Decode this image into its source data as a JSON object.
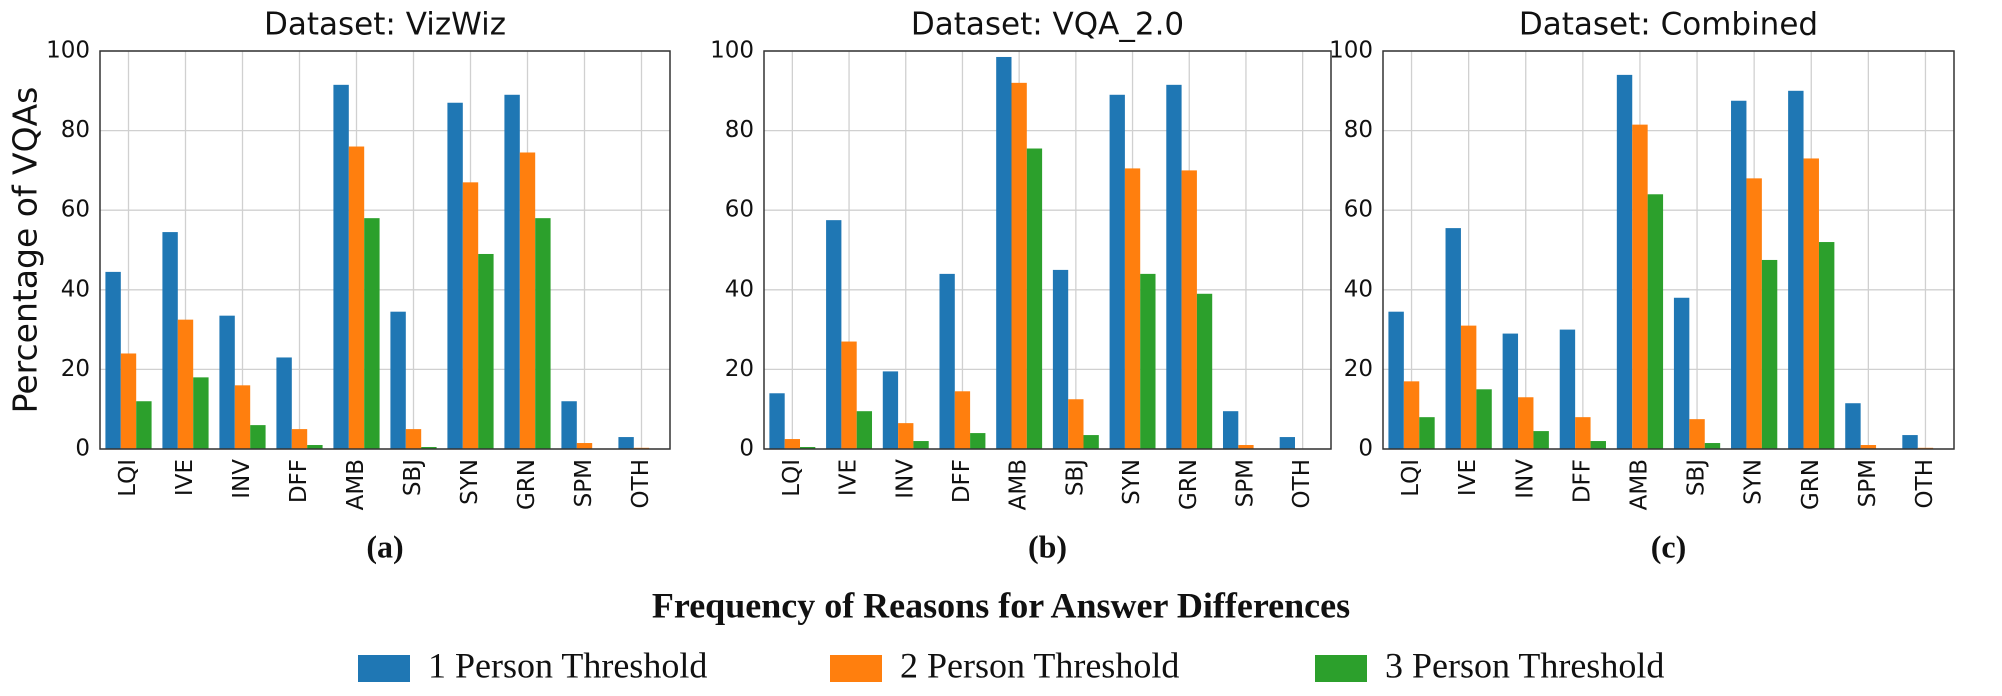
{
  "caption": "Frequency of Reasons for Answer Differences",
  "legend": [
    {
      "name": "1 Person Threshold",
      "color": "#1f77b4"
    },
    {
      "name": "2 Person Threshold",
      "color": "#ff7f0e"
    },
    {
      "name": "3 Person Threshold",
      "color": "#2ca02c"
    }
  ],
  "chart_data": [
    {
      "type": "bar",
      "title": "Dataset: VizWiz",
      "panel_label": "(a)",
      "ylabel": "Percentage  of  VQAs",
      "categories": [
        "LQI",
        "IVE",
        "INV",
        "DFF",
        "AMB",
        "SBJ",
        "SYN",
        "GRN",
        "SPM",
        "OTH"
      ],
      "series": [
        {
          "values": [
            44.5,
            54.5,
            33.5,
            23,
            91.5,
            34.5,
            87,
            89,
            12,
            3
          ]
        },
        {
          "values": [
            24,
            32.5,
            16,
            5,
            76,
            5,
            67,
            74.5,
            1.5,
            0.3
          ]
        },
        {
          "values": [
            12,
            18,
            6,
            1,
            58,
            0.5,
            49,
            58,
            0,
            0
          ]
        }
      ],
      "ylim": [
        0,
        100
      ],
      "yticks": [
        0,
        20,
        40,
        60,
        80,
        100
      ],
      "grid": true
    },
    {
      "type": "bar",
      "title": "Dataset: VQA_2.0",
      "panel_label": "(b)",
      "categories": [
        "LQI",
        "IVE",
        "INV",
        "DFF",
        "AMB",
        "SBJ",
        "SYN",
        "GRN",
        "SPM",
        "OTH"
      ],
      "series": [
        {
          "values": [
            14,
            57.5,
            19.5,
            44,
            98.5,
            45,
            89,
            91.5,
            9.5,
            3
          ]
        },
        {
          "values": [
            2.5,
            27,
            6.5,
            14.5,
            92,
            12.5,
            70.5,
            70,
            1,
            0
          ]
        },
        {
          "values": [
            0.5,
            9.5,
            2,
            4,
            75.5,
            3.5,
            44,
            39,
            0,
            0
          ]
        }
      ],
      "ylim": [
        0,
        100
      ],
      "yticks": [
        0,
        20,
        40,
        60,
        80,
        100
      ],
      "grid": true
    },
    {
      "type": "bar",
      "title": "Dataset: Combined",
      "panel_label": "(c)",
      "categories": [
        "LQI",
        "IVE",
        "INV",
        "DFF",
        "AMB",
        "SBJ",
        "SYN",
        "GRN",
        "SPM",
        "OTH"
      ],
      "series": [
        {
          "values": [
            34.5,
            55.5,
            29,
            30,
            94,
            38,
            87.5,
            90,
            11.5,
            3.5
          ]
        },
        {
          "values": [
            17,
            31,
            13,
            8,
            81.5,
            7.5,
            68,
            73,
            1,
            0.3
          ]
        },
        {
          "values": [
            8,
            15,
            4.5,
            2,
            64,
            1.5,
            47.5,
            52,
            0,
            0
          ]
        }
      ],
      "ylim": [
        0,
        100
      ],
      "yticks": [
        0,
        20,
        40,
        60,
        80,
        100
      ],
      "grid": true
    }
  ]
}
